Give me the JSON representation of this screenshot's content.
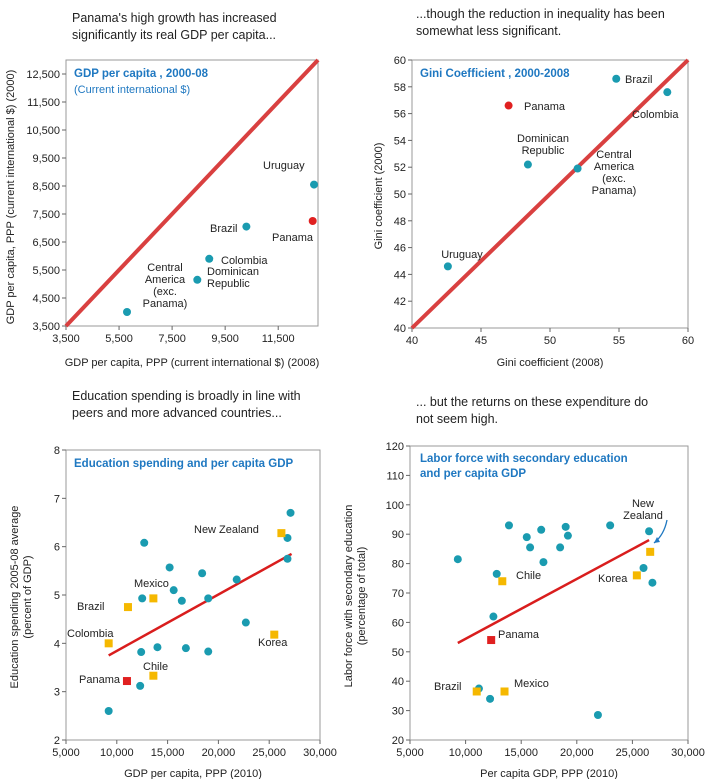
{
  "captions": {
    "top_left": [
      "Panama's high growth has increased",
      "significantly its real GDP per capita..."
    ],
    "top_right": [
      "...though the reduction in inequality has been",
      "somewhat less significant."
    ],
    "bottom_left": [
      "Education spending is broadly in line with",
      "peers and more advanced countries..."
    ],
    "bottom_right": [
      "... but the returns on these expenditure do",
      "not seem high."
    ]
  },
  "colors": {
    "diag_line": "#d94040",
    "fit_line": "#d91d1d",
    "point_teal": "#1a9bb0",
    "point_red": "#e02020",
    "point_yellow": "#f5b800",
    "title_blue": "#1f78c1",
    "frame": "#999999"
  },
  "chart_data": [
    {
      "type": "scatter",
      "title": "GDP per capita , 2000-08",
      "subtitle": "(Current international $)",
      "xlabel": "GDP per capita, PPP (current international $) (2008)",
      "ylabel": "GDP per capita, PPP (current international $) (2000)",
      "xlim": [
        3500,
        13000
      ],
      "ylim": [
        3500,
        13000
      ],
      "x_ticks": [
        "3,500",
        "5,500",
        "7,500",
        "9,500",
        "11,500"
      ],
      "x_tick_values": [
        3500,
        5500,
        7500,
        9500,
        11500
      ],
      "y_ticks": [
        "3,500",
        "4,500",
        "5,500",
        "6,500",
        "7,500",
        "8,500",
        "9,500",
        "10,500",
        "11,500",
        "12,500"
      ],
      "y_tick_values": [
        3500,
        4500,
        5500,
        6500,
        7500,
        8500,
        9500,
        10500,
        11500,
        12500
      ],
      "reference_line": "45-degree",
      "points": [
        {
          "label": "Uruguay",
          "x": 12850,
          "y": 8550,
          "color": "teal"
        },
        {
          "label": "Panama",
          "x": 12800,
          "y": 7250,
          "color": "red"
        },
        {
          "label": "Brazil",
          "x": 10300,
          "y": 7050,
          "color": "teal"
        },
        {
          "label": "Colombia",
          "x": 8900,
          "y": 5900,
          "color": "teal"
        },
        {
          "label": "Dominican Republic",
          "x": 8450,
          "y": 5150,
          "color": "teal"
        },
        {
          "label": "Central America (exc. Panama)",
          "x": 5800,
          "y": 4000,
          "color": "teal"
        }
      ]
    },
    {
      "type": "scatter",
      "title": "Gini Coefficient , 2000-2008",
      "xlabel": "Gini coefficient (2008)",
      "ylabel": "Gini coefficient (2000)",
      "xlim": [
        40,
        60
      ],
      "ylim": [
        40,
        60
      ],
      "x_ticks": [
        "40",
        "45",
        "50",
        "55",
        "60"
      ],
      "x_tick_values": [
        40,
        45,
        50,
        55,
        60
      ],
      "y_ticks": [
        "40",
        "42",
        "44",
        "46",
        "48",
        "50",
        "52",
        "54",
        "56",
        "58",
        "60"
      ],
      "y_tick_values": [
        40,
        42,
        44,
        46,
        48,
        50,
        52,
        54,
        56,
        58,
        60
      ],
      "reference_line": "45-degree",
      "points": [
        {
          "label": "Brazil",
          "x": 54.8,
          "y": 58.6,
          "color": "teal"
        },
        {
          "label": "Colombia",
          "x": 58.5,
          "y": 57.6,
          "color": "teal"
        },
        {
          "label": "Panama",
          "x": 47.0,
          "y": 56.6,
          "color": "red"
        },
        {
          "label": "Dominican Republic",
          "x": 48.4,
          "y": 52.2,
          "color": "teal"
        },
        {
          "label": "Central America (exc. Panama)",
          "x": 52.0,
          "y": 51.9,
          "color": "teal"
        },
        {
          "label": "Uruguay",
          "x": 42.6,
          "y": 44.6,
          "color": "teal"
        }
      ]
    },
    {
      "type": "scatter",
      "title": "Education spending and per capita GDP",
      "xlabel": "GDP per capita, PPP (2010)",
      "ylabel": "Education spending 2005-08 average (percent of GDP)",
      "xlim": [
        5000,
        30000
      ],
      "ylim": [
        2,
        8
      ],
      "x_ticks": [
        "5,000",
        "10,000",
        "15,000",
        "20,000",
        "25,000",
        "30,000"
      ],
      "x_tick_values": [
        5000,
        10000,
        15000,
        20000,
        25000,
        30000
      ],
      "y_ticks": [
        "2",
        "3",
        "4",
        "5",
        "6",
        "7",
        "8"
      ],
      "y_tick_values": [
        2,
        3,
        4,
        5,
        6,
        7,
        8
      ],
      "trend_line": {
        "x": [
          9200,
          27200
        ],
        "y": [
          3.75,
          5.85
        ]
      },
      "points": [
        {
          "x": 9200,
          "y": 2.6,
          "color": "teal"
        },
        {
          "x": 12300,
          "y": 3.12,
          "color": "teal"
        },
        {
          "x": 12400,
          "y": 3.82,
          "color": "teal"
        },
        {
          "x": 12700,
          "y": 6.08,
          "color": "teal"
        },
        {
          "x": 12500,
          "y": 4.93,
          "color": "teal"
        },
        {
          "x": 14000,
          "y": 3.92,
          "color": "teal"
        },
        {
          "x": 15200,
          "y": 5.57,
          "color": "teal"
        },
        {
          "x": 15600,
          "y": 5.1,
          "color": "teal"
        },
        {
          "x": 16400,
          "y": 4.88,
          "color": "teal"
        },
        {
          "x": 16800,
          "y": 3.9,
          "color": "teal"
        },
        {
          "x": 18400,
          "y": 5.45,
          "color": "teal"
        },
        {
          "x": 19000,
          "y": 4.93,
          "color": "teal"
        },
        {
          "x": 19000,
          "y": 3.83,
          "color": "teal"
        },
        {
          "x": 21800,
          "y": 5.32,
          "color": "teal"
        },
        {
          "x": 22700,
          "y": 4.43,
          "color": "teal"
        },
        {
          "x": 26800,
          "y": 6.18,
          "color": "teal"
        },
        {
          "x": 27100,
          "y": 6.7,
          "color": "teal"
        },
        {
          "x": 26800,
          "y": 5.75,
          "color": "teal"
        },
        {
          "label": "New Zealand",
          "x": 26200,
          "y": 6.28,
          "color": "yellow"
        },
        {
          "label": "Korea",
          "x": 25500,
          "y": 4.18,
          "color": "yellow"
        },
        {
          "label": "Mexico",
          "x": 13600,
          "y": 4.93,
          "color": "yellow"
        },
        {
          "label": "Brazil",
          "x": 11100,
          "y": 4.75,
          "color": "yellow"
        },
        {
          "label": "Colombia",
          "x": 9200,
          "y": 4.0,
          "color": "yellow"
        },
        {
          "label": "Chile",
          "x": 13600,
          "y": 3.33,
          "color": "yellow"
        },
        {
          "label": "Panama",
          "x": 11000,
          "y": 3.22,
          "color": "red"
        }
      ]
    },
    {
      "type": "scatter",
      "title": "Labor force with secondary education and per capita GDP",
      "xlabel": "Per capita GDP, PPP (2010)",
      "ylabel": "Labor force with secondary education (percentage of total)",
      "xlim": [
        5000,
        30000
      ],
      "ylim": [
        20,
        120
      ],
      "x_ticks": [
        "5,000",
        "10,000",
        "15,000",
        "20,000",
        "25,000",
        "30,000"
      ],
      "x_tick_values": [
        5000,
        10000,
        15000,
        20000,
        25000,
        30000
      ],
      "y_ticks": [
        "20",
        "30",
        "40",
        "50",
        "60",
        "70",
        "80",
        "90",
        "100",
        "110",
        "120"
      ],
      "y_tick_values": [
        20,
        30,
        40,
        50,
        60,
        70,
        80,
        90,
        100,
        110,
        120
      ],
      "trend_line": {
        "x": [
          9300,
          26500
        ],
        "y": [
          53,
          88
        ]
      },
      "points": [
        {
          "x": 9300,
          "y": 81.5,
          "color": "teal"
        },
        {
          "x": 11200,
          "y": 37.5,
          "color": "teal"
        },
        {
          "x": 12200,
          "y": 34,
          "color": "teal"
        },
        {
          "x": 12500,
          "y": 62,
          "color": "teal"
        },
        {
          "x": 12800,
          "y": 76.5,
          "color": "teal"
        },
        {
          "x": 13900,
          "y": 93,
          "color": "teal"
        },
        {
          "x": 15500,
          "y": 89,
          "color": "teal"
        },
        {
          "x": 15800,
          "y": 85.5,
          "color": "teal"
        },
        {
          "x": 16800,
          "y": 91.5,
          "color": "teal"
        },
        {
          "x": 17000,
          "y": 80.5,
          "color": "teal"
        },
        {
          "x": 18500,
          "y": 85.5,
          "color": "teal"
        },
        {
          "x": 19000,
          "y": 92.5,
          "color": "teal"
        },
        {
          "x": 19200,
          "y": 89.5,
          "color": "teal"
        },
        {
          "x": 21900,
          "y": 28.5,
          "color": "teal"
        },
        {
          "x": 23000,
          "y": 93,
          "color": "teal"
        },
        {
          "x": 26000,
          "y": 78.5,
          "color": "teal"
        },
        {
          "x": 26500,
          "y": 91,
          "color": "teal"
        },
        {
          "x": 26800,
          "y": 73.5,
          "color": "teal"
        },
        {
          "label": "New Zealand",
          "x": 26600,
          "y": 84,
          "color": "yellow"
        },
        {
          "label": "Korea",
          "x": 25400,
          "y": 76,
          "color": "yellow"
        },
        {
          "label": "Chile",
          "x": 13300,
          "y": 74,
          "color": "yellow"
        },
        {
          "label": "Brazil",
          "x": 11000,
          "y": 36.5,
          "color": "yellow"
        },
        {
          "label": "Mexico",
          "x": 13500,
          "y": 36.5,
          "color": "yellow"
        },
        {
          "label": "Panama",
          "x": 12300,
          "y": 54,
          "color": "red"
        }
      ]
    }
  ]
}
